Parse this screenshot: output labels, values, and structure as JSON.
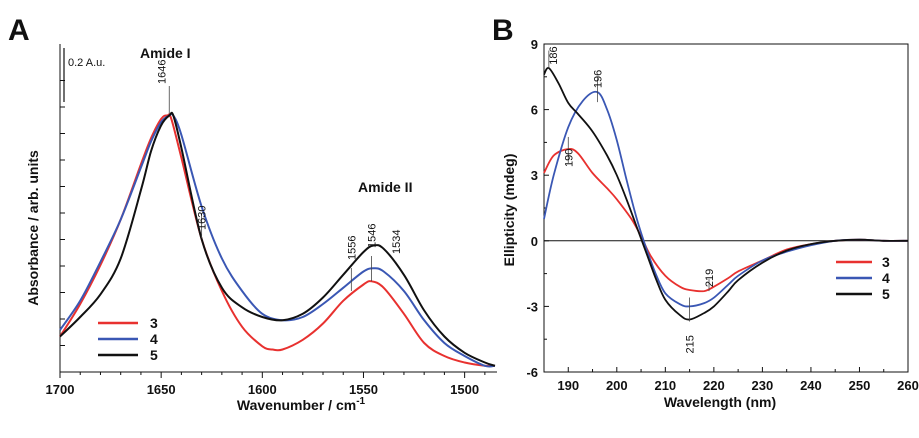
{
  "chart_data": [
    {
      "panel": "A",
      "type": "line",
      "xlabel": "Wavenumber / cm",
      "xlabel_superscript": "-1",
      "ylabel": "Absorbance / arb. units",
      "xlim": [
        1700,
        1484
      ],
      "ylim": [
        0,
        1.0
      ],
      "x_ticks": [
        1700,
        1650,
        1600,
        1550,
        1500
      ],
      "scale_bar_label": "0.2 A.u.",
      "band_labels": [
        "Amide I",
        "Amide II"
      ],
      "peak_labels": [
        "1646",
        "1630",
        "1556",
        "1546",
        "1534"
      ],
      "legend_position": "bottom-left",
      "series": [
        {
          "name": "3",
          "color": "#e8312f",
          "x": [
            1700,
            1690,
            1680,
            1670,
            1660,
            1655,
            1650,
            1647,
            1645,
            1640,
            1630,
            1620,
            1610,
            1600,
            1595,
            1590,
            1580,
            1570,
            1560,
            1550,
            1546,
            1540,
            1530,
            1520,
            1510,
            1500,
            1490,
            1485
          ],
          "y": [
            0.1,
            0.2,
            0.32,
            0.46,
            0.63,
            0.71,
            0.77,
            0.78,
            0.77,
            0.65,
            0.4,
            0.24,
            0.13,
            0.07,
            0.06,
            0.06,
            0.09,
            0.14,
            0.21,
            0.26,
            0.27,
            0.25,
            0.17,
            0.08,
            0.04,
            0.02,
            0.01,
            0.01
          ]
        },
        {
          "name": "4",
          "color": "#3a57b4",
          "x": [
            1700,
            1690,
            1680,
            1670,
            1660,
            1655,
            1650,
            1646,
            1644,
            1640,
            1630,
            1620,
            1610,
            1600,
            1590,
            1580,
            1570,
            1560,
            1550,
            1545,
            1540,
            1530,
            1520,
            1510,
            1500,
            1490,
            1485
          ],
          "y": [
            0.12,
            0.21,
            0.33,
            0.46,
            0.62,
            0.7,
            0.76,
            0.78,
            0.78,
            0.72,
            0.5,
            0.34,
            0.24,
            0.17,
            0.15,
            0.16,
            0.2,
            0.25,
            0.3,
            0.31,
            0.3,
            0.24,
            0.15,
            0.08,
            0.04,
            0.01,
            0.01
          ]
        },
        {
          "name": "5",
          "color": "#111111",
          "x": [
            1700,
            1690,
            1680,
            1670,
            1660,
            1655,
            1650,
            1646,
            1644,
            1640,
            1630,
            1620,
            1610,
            1600,
            1590,
            1580,
            1570,
            1560,
            1550,
            1545,
            1540,
            1530,
            1520,
            1510,
            1500,
            1490,
            1485
          ],
          "y": [
            0.1,
            0.16,
            0.23,
            0.34,
            0.55,
            0.67,
            0.75,
            0.78,
            0.78,
            0.68,
            0.4,
            0.25,
            0.19,
            0.16,
            0.15,
            0.17,
            0.22,
            0.29,
            0.36,
            0.38,
            0.37,
            0.29,
            0.18,
            0.1,
            0.05,
            0.02,
            0.01
          ]
        }
      ]
    },
    {
      "panel": "B",
      "type": "line",
      "xlabel": "Wavelength (nm)",
      "ylabel": "Ellipticity (mdeg)",
      "xlim": [
        185,
        260
      ],
      "ylim": [
        -6,
        9
      ],
      "x_ticks": [
        190,
        200,
        210,
        220,
        230,
        240,
        250,
        260
      ],
      "y_ticks": [
        -6,
        -3,
        0,
        3,
        6,
        9
      ],
      "peak_labels": [
        "186",
        "196",
        "190",
        "219",
        "215"
      ],
      "legend_position": "right",
      "series": [
        {
          "name": "3",
          "color": "#e8312f",
          "x": [
            185,
            187,
            190,
            192,
            195,
            198,
            200,
            203,
            205,
            207,
            210,
            213,
            215,
            218,
            220,
            223,
            225,
            230,
            235,
            240,
            245,
            250,
            255,
            260
          ],
          "y": [
            3.1,
            3.9,
            4.2,
            4.0,
            3.1,
            2.4,
            1.9,
            1.0,
            0.2,
            -0.7,
            -1.6,
            -2.1,
            -2.25,
            -2.3,
            -2.1,
            -1.7,
            -1.4,
            -0.9,
            -0.4,
            -0.15,
            0.0,
            0.05,
            0.0,
            0.0
          ]
        },
        {
          "name": "4",
          "color": "#3a57b4",
          "x": [
            185,
            187,
            190,
            193,
            196,
            198,
            200,
            202,
            204,
            206,
            208,
            210,
            213,
            215,
            218,
            220,
            223,
            225,
            230,
            235,
            240,
            245,
            250,
            255,
            260
          ],
          "y": [
            1.0,
            3.0,
            5.2,
            6.4,
            6.8,
            6.0,
            4.6,
            2.8,
            1.1,
            -0.3,
            -1.5,
            -2.4,
            -2.9,
            -3.0,
            -2.85,
            -2.6,
            -2.0,
            -1.6,
            -0.9,
            -0.5,
            -0.2,
            0.0,
            0.05,
            0.0,
            0.0
          ]
        },
        {
          "name": "5",
          "color": "#111111",
          "x": [
            185,
            186,
            188,
            190,
            192,
            195,
            198,
            200,
            202,
            204,
            206,
            208,
            210,
            213,
            215,
            218,
            220,
            223,
            225,
            230,
            235,
            240,
            245,
            250,
            255,
            260
          ],
          "y": [
            7.6,
            7.9,
            7.2,
            6.3,
            5.8,
            5.0,
            3.9,
            3.0,
            1.9,
            0.7,
            -0.5,
            -1.7,
            -2.7,
            -3.4,
            -3.6,
            -3.3,
            -3.0,
            -2.3,
            -1.8,
            -1.0,
            -0.45,
            -0.15,
            0.0,
            0.05,
            0.0,
            0.0
          ]
        }
      ]
    }
  ]
}
